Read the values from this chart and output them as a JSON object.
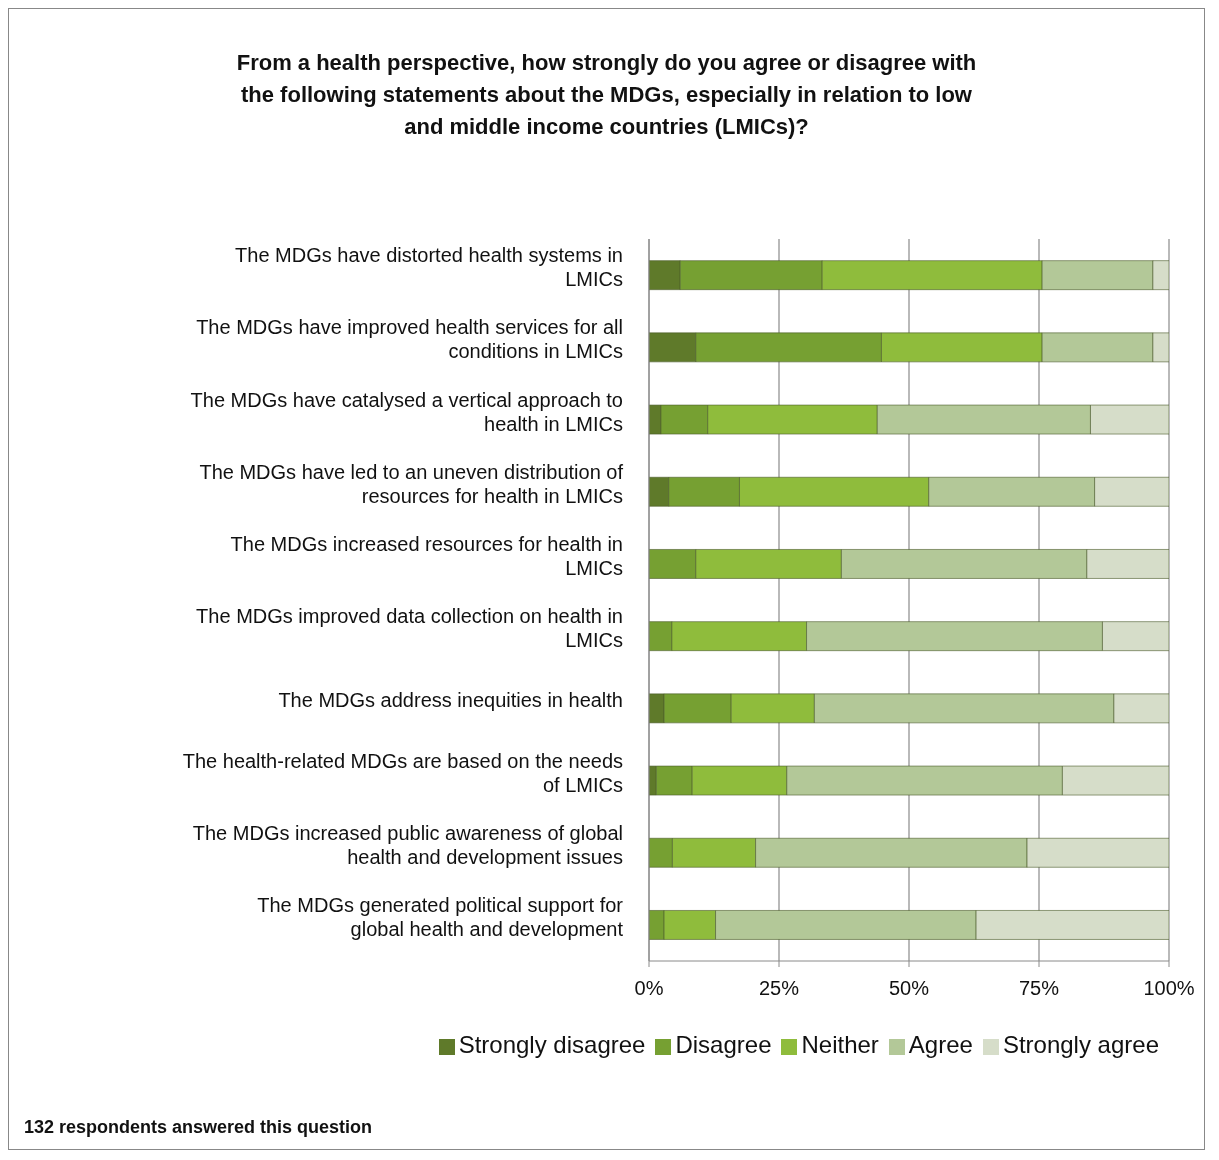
{
  "chart_data": {
    "type": "bar",
    "orientation": "horizontal",
    "stacked": true,
    "title": "From a health perspective, how strongly do you agree or disagree with the following statements about the MDGs, especially in relation to low and middle income countries (LMICs)?",
    "categories": [
      "The MDGs have distorted health systems in LMICs",
      "The MDGs have improved health services for all conditions in LMICs",
      "The MDGs have catalysed a vertical approach to health in LMICs",
      "The MDGs have led to an uneven distribution of resources for health in LMICs",
      "The MDGs increased resources for health in LMICs",
      "The MDGs improved data collection on health in LMICs",
      "The MDGs address inequities in health",
      "The health-related MDGs are based on the needs of LMICs",
      "The MDGs increased public awareness of global health and development issues",
      "The MDGs generated political support for global health and development"
    ],
    "series": [
      {
        "name": "Strongly disagree",
        "color": "#5f7a2a",
        "values": [
          6.0,
          9.0,
          2.3,
          3.8,
          0,
          0,
          2.9,
          1.4,
          null,
          0
        ]
      },
      {
        "name": "Disagree",
        "color": "#76a032",
        "values": [
          27.3,
          35.7,
          9.0,
          13.6,
          9.0,
          4.4,
          12.9,
          6.9,
          4.5,
          2.9
        ]
      },
      {
        "name": "Neither",
        "color": "#8fbc3c",
        "values": [
          42.3,
          30.9,
          32.6,
          36.4,
          28.0,
          25.9,
          16.0,
          18.2,
          16.0,
          9.9
        ]
      },
      {
        "name": "Agree",
        "color": "#b3c898",
        "values": [
          21.3,
          21.3,
          41.0,
          31.9,
          47.2,
          56.9,
          57.6,
          53.0,
          52.2,
          50.1
        ]
      },
      {
        "name": "Strongly agree",
        "color": "#d6ddc9",
        "values": [
          3.1,
          3.1,
          15.1,
          14.3,
          15.8,
          12.8,
          10.6,
          20.5,
          27.3,
          37.1
        ]
      }
    ],
    "xlim": [
      0,
      100
    ],
    "xticks": [
      {
        "value": 0,
        "label": "0%"
      },
      {
        "value": 25,
        "label": "25%"
      },
      {
        "value": 50,
        "label": "50%"
      },
      {
        "value": 75,
        "label": "75%"
      },
      {
        "value": 100,
        "label": "100%"
      }
    ],
    "grid": "x",
    "legend": "bottom",
    "annotations": [
      "132 respondents answered this question"
    ]
  }
}
